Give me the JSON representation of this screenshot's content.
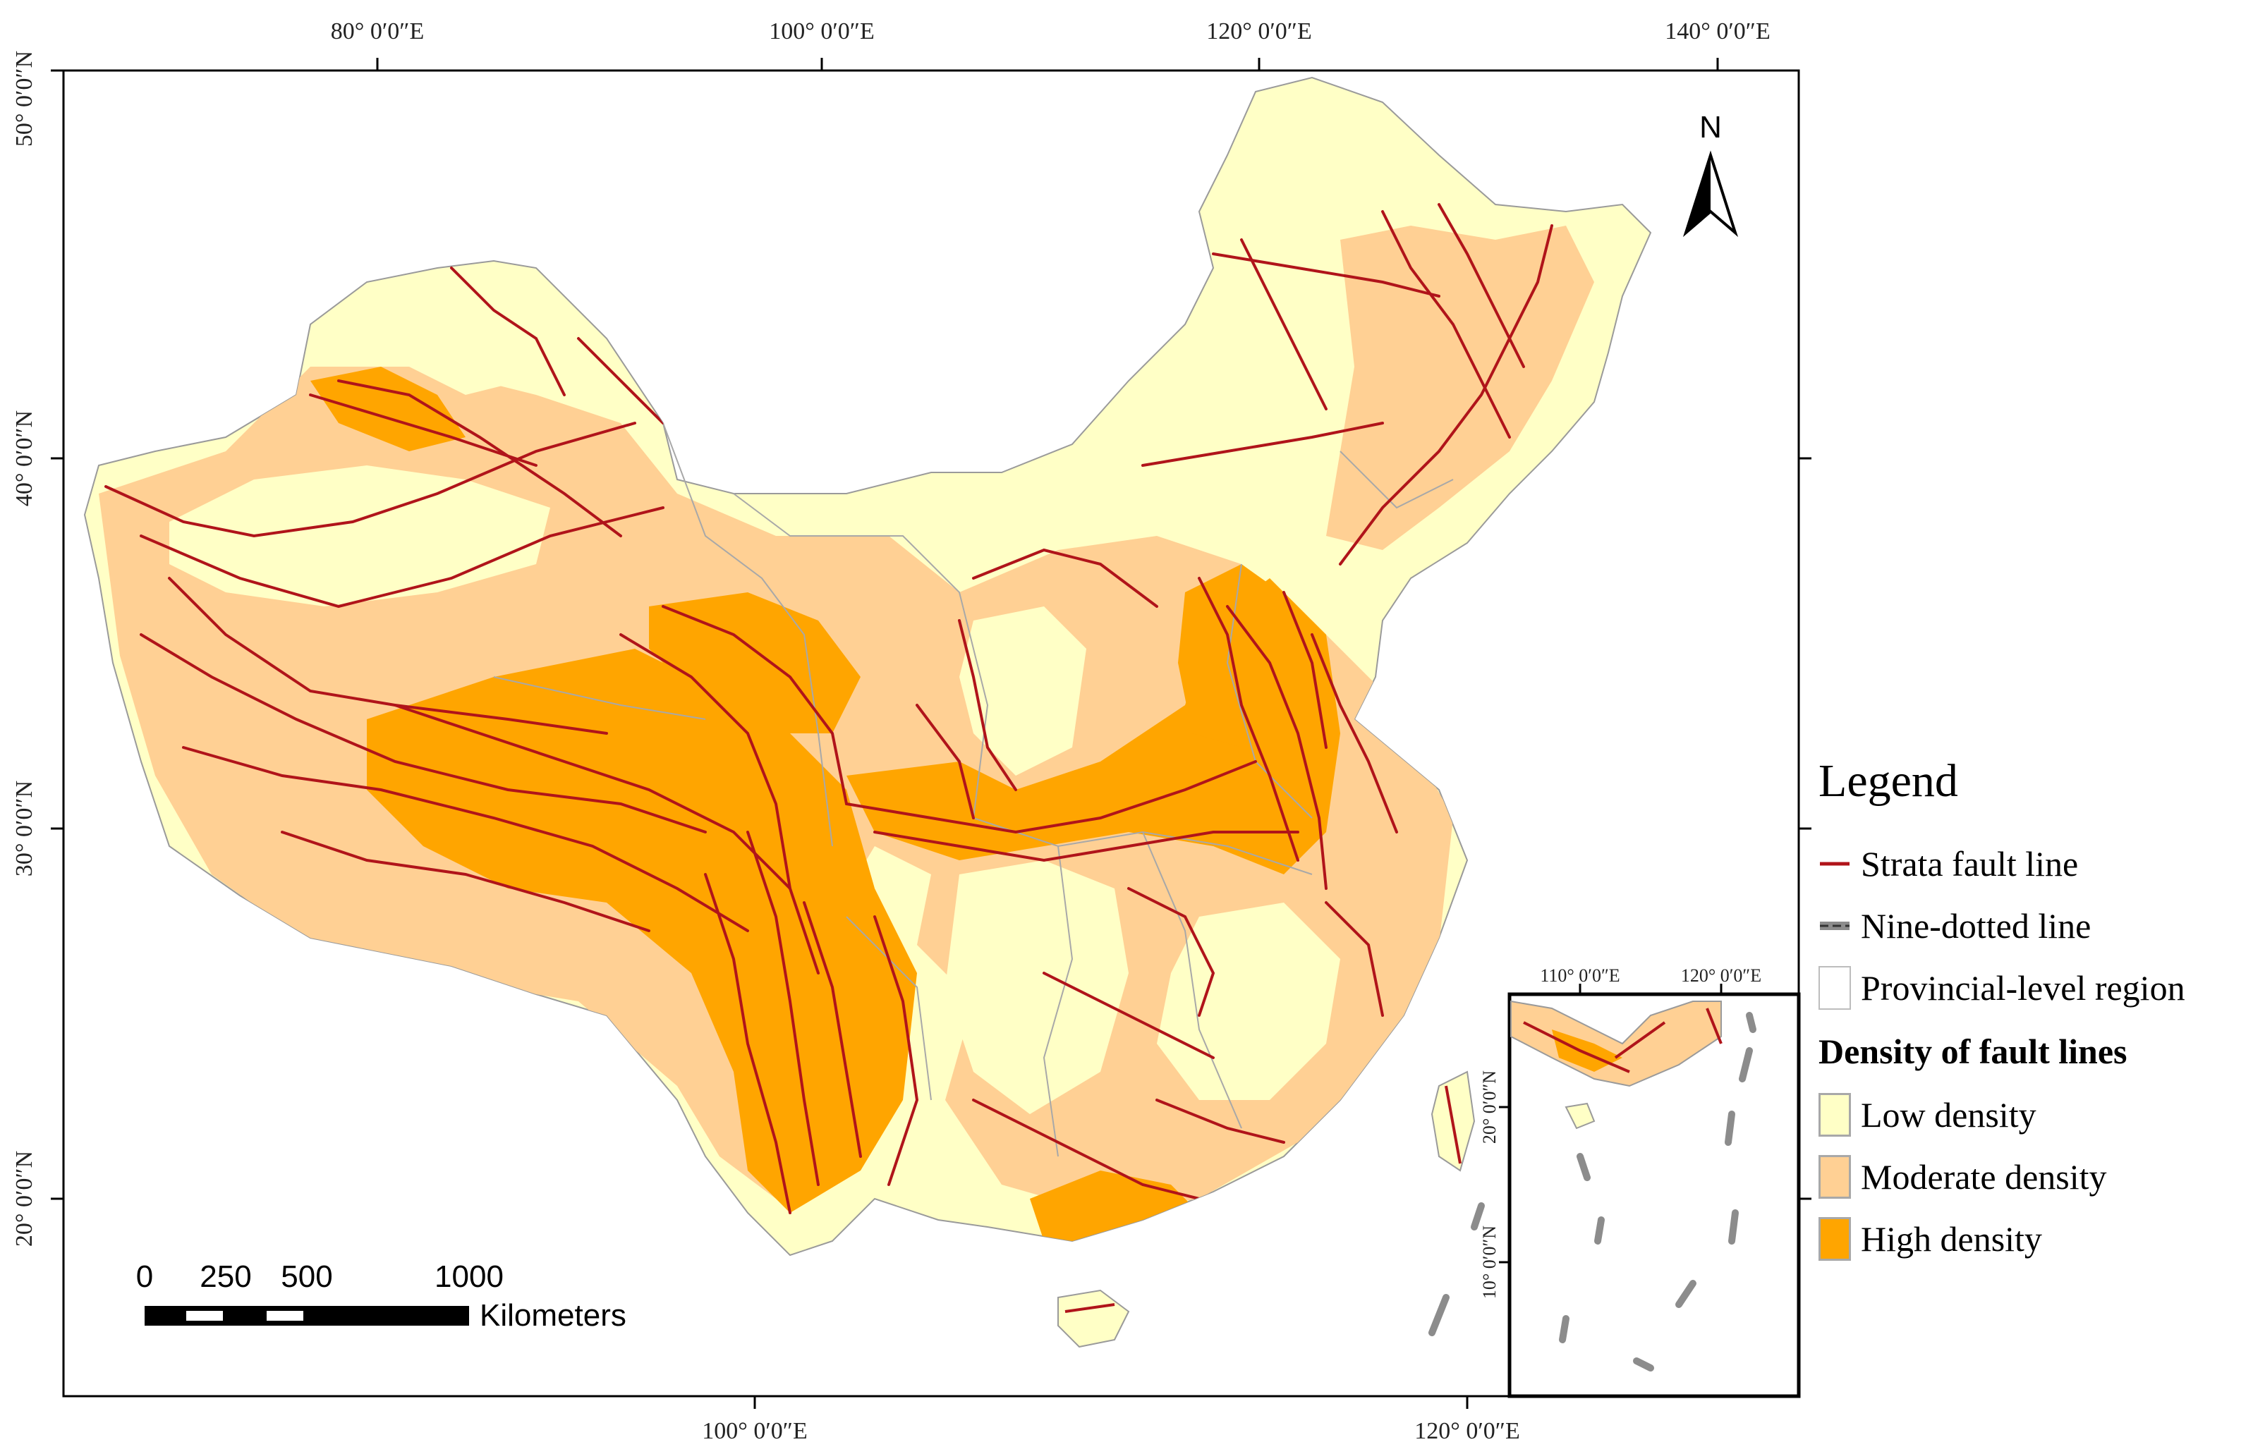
{
  "map": {
    "top_ticks": [
      "80° 0′0″E",
      "100° 0′0″E",
      "120° 0′0″E",
      "140° 0′0″E"
    ],
    "bottom_ticks": [
      "100° 0′0″E",
      "120° 0′0″E"
    ],
    "left_ticks": [
      "50° 0′0″N",
      "40° 0′0″N",
      "30° 0′0″N",
      "20° 0′0″N"
    ],
    "north_arrow_label": "N",
    "scale_bar": {
      "labels": [
        "0",
        "250",
        "500",
        "1000"
      ],
      "unit": "Kilometers"
    },
    "inset": {
      "top_ticks": [
        "110° 0′0″E",
        "120° 0′0″E"
      ],
      "left_ticks": [
        "20° 0′0″N",
        "10° 0′0″N"
      ]
    }
  },
  "legend": {
    "title": "Legend",
    "items": [
      {
        "label": "Strata fault line",
        "color": "#b0141a"
      },
      {
        "label": "Nine-dotted line",
        "color": "#8c8c8c"
      },
      {
        "label": "Provincial-level region",
        "color": "#ffffff"
      }
    ],
    "density_title": "Density of fault lines",
    "density": [
      {
        "label": "Low density",
        "color": "#ffffc6"
      },
      {
        "label": "Moderate density",
        "color": "#ffd094"
      },
      {
        "label": "High density",
        "color": "#ffa500"
      }
    ]
  }
}
